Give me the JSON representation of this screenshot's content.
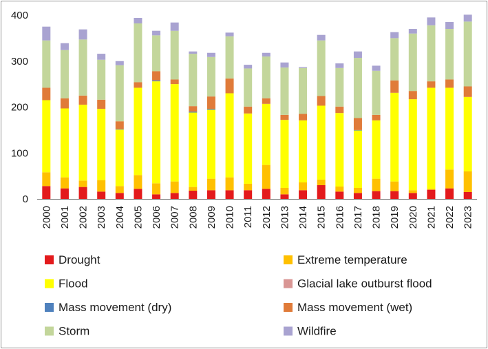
{
  "chart_data": {
    "type": "bar",
    "stacked": true,
    "title": "",
    "xlabel": "",
    "ylabel": "",
    "ylim": [
      0,
      400
    ],
    "yticks": [
      0,
      100,
      200,
      300,
      400
    ],
    "grid": false,
    "legend_position": "bottom",
    "categories": [
      "2000",
      "2001",
      "2002",
      "2003",
      "2004",
      "2005",
      "2006",
      "2007",
      "2008",
      "2009",
      "2010",
      "2011",
      "2012",
      "2013",
      "2014",
      "2015",
      "2016",
      "2017",
      "2018",
      "2019",
      "2020",
      "2021",
      "2022",
      "2023"
    ],
    "series": [
      {
        "name": "Drought",
        "color": "#e31a1c",
        "values": [
          28,
          23,
          26,
          16,
          13,
          22,
          10,
          13,
          18,
          19,
          19,
          19,
          22,
          10,
          19,
          30,
          16,
          13,
          17,
          17,
          13,
          20,
          23,
          15
        ]
      },
      {
        "name": "Extreme temperature",
        "color": "#ffc000",
        "values": [
          30,
          24,
          14,
          25,
          15,
          30,
          24,
          25,
          8,
          25,
          28,
          14,
          52,
          14,
          17,
          12,
          11,
          11,
          27,
          21,
          6,
          2,
          41,
          45
        ]
      },
      {
        "name": "Flood",
        "color": "#ffff00",
        "values": [
          157,
          150,
          165,
          155,
          123,
          190,
          222,
          212,
          162,
          150,
          183,
          153,
          133,
          148,
          135,
          161,
          160,
          125,
          127,
          193,
          198,
          220,
          178,
          162
        ]
      },
      {
        "name": "Glacial lake outburst flood",
        "color": "#d99694",
        "values": [
          0,
          0,
          0,
          0,
          0,
          0,
          0,
          0,
          0,
          0,
          0,
          0,
          0,
          0,
          0,
          0,
          0,
          0,
          0,
          0,
          0,
          0,
          0,
          0
        ]
      },
      {
        "name": "Mass movement (dry)",
        "color": "#4f81bd",
        "values": [
          0,
          0,
          0,
          0,
          1,
          0,
          2,
          0,
          2,
          2,
          0,
          0,
          0,
          0,
          0,
          0,
          0,
          1,
          0,
          0,
          0,
          0,
          0,
          0
        ]
      },
      {
        "name": "Mass movement (wet)",
        "color": "#e07b39",
        "values": [
          27,
          22,
          20,
          20,
          17,
          12,
          20,
          10,
          12,
          27,
          32,
          15,
          12,
          11,
          14,
          21,
          14,
          26,
          12,
          27,
          18,
          14,
          18,
          23
        ]
      },
      {
        "name": "Storm",
        "color": "#c3d69b",
        "values": [
          103,
          105,
          122,
          87,
          122,
          128,
          78,
          106,
          114,
          86,
          92,
          83,
          91,
          103,
          100,
          121,
          84,
          131,
          96,
          92,
          125,
          122,
          110,
          141
        ]
      },
      {
        "name": "Wildfire",
        "color": "#a9a3d1",
        "values": [
          30,
          15,
          22,
          13,
          9,
          12,
          10,
          18,
          5,
          9,
          8,
          8,
          8,
          11,
          2,
          12,
          10,
          14,
          11,
          13,
          10,
          17,
          15,
          15
        ]
      }
    ]
  },
  "legend": {
    "items": [
      {
        "label": "Drought",
        "color": "#e31a1c"
      },
      {
        "label": "Extreme temperature",
        "color": "#ffc000"
      },
      {
        "label": "Flood",
        "color": "#ffff00"
      },
      {
        "label": "Glacial lake outburst flood",
        "color": "#d99694"
      },
      {
        "label": "Mass movement (dry)",
        "color": "#4f81bd"
      },
      {
        "label": "Mass movement (wet)",
        "color": "#e07b39"
      },
      {
        "label": "Storm",
        "color": "#c3d69b"
      },
      {
        "label": "Wildfire",
        "color": "#a9a3d1"
      }
    ]
  }
}
